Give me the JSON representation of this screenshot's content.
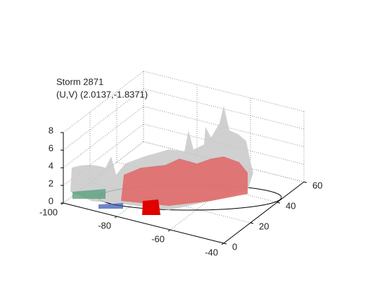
{
  "chart_data": {
    "type": "surface3d",
    "title": "Storm 2871",
    "subtitle": "(U,V) (2.0137,-1.8371)",
    "xlim": [
      -100,
      -40
    ],
    "xticks": [
      -100,
      -80,
      -60,
      -40
    ],
    "ylim": [
      0,
      60
    ],
    "yticks": [
      0,
      20,
      40,
      60
    ],
    "zlim": [
      0,
      8
    ],
    "zticks": [
      0,
      2,
      4,
      6,
      8
    ],
    "grid": true
  }
}
